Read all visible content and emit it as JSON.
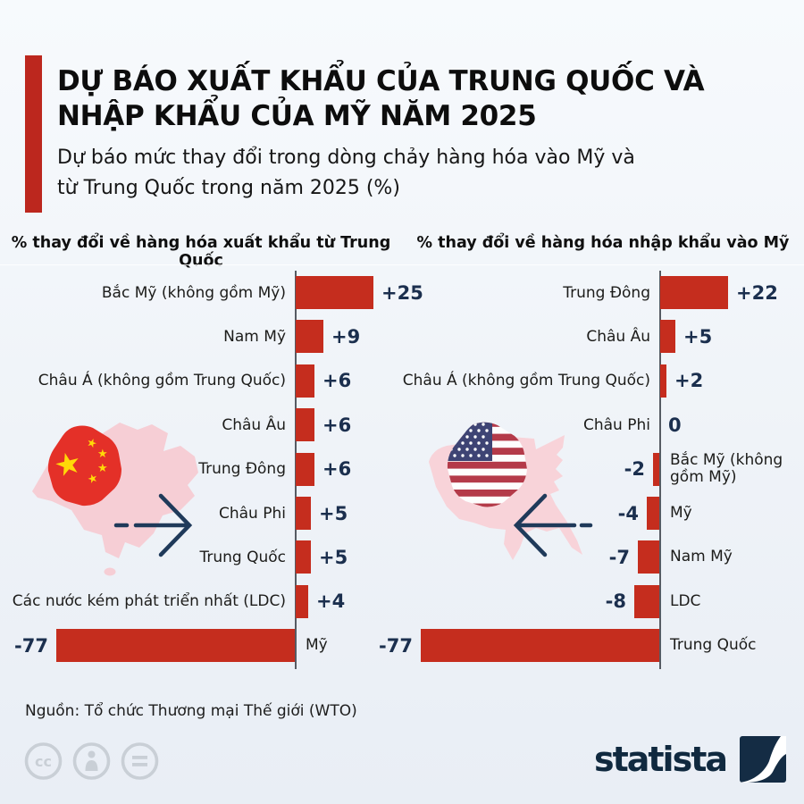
{
  "header": {
    "title_line1": "DỰ BÁO XUẤT KHẨU CỦA TRUNG QUỐC VÀ",
    "title_line2": "NHẬP KHẨU CỦA MỸ NĂM 2025",
    "subtitle_line1": "Dự báo mức thay đổi trong dòng chảy hàng hóa vào Mỹ và",
    "subtitle_line2": "từ Trung Quốc trong năm 2025 (%)",
    "accent_color": "#bc271e"
  },
  "chart_data": [
    {
      "type": "bar",
      "orientation": "horizontal",
      "title": "% thay đổi về hàng hóa xuất khẩu từ Trung Quốc",
      "unit": "%",
      "categories": [
        "Bắc Mỹ (không gồm Mỹ)",
        "Nam Mỹ",
        "Châu Á (không gồm Trung Quốc)",
        "Châu Âu",
        "Trung Đông",
        "Châu Phi",
        "Trung Quốc",
        "Các nước kém phát triển nhất (LDC)",
        "Mỹ"
      ],
      "values": [
        25,
        9,
        6,
        6,
        6,
        5,
        5,
        4,
        -77
      ],
      "value_labels": [
        "+25",
        "+9",
        "+6",
        "+6",
        "+6",
        "+5",
        "+5",
        "+4",
        "-77"
      ],
      "xlim": [
        -80,
        30
      ],
      "baseline": 0,
      "grid": false,
      "bar_color": "#c52d1e",
      "value_color": "#1b2f4e",
      "decoration": "china-map-with-flag-and-right-arrow"
    },
    {
      "type": "bar",
      "orientation": "horizontal",
      "title": "% thay đổi về hàng hóa nhập khẩu vào Mỹ",
      "unit": "%",
      "categories": [
        "Trung Đông",
        "Châu Âu",
        "Châu Á (không gồm Trung Quốc)",
        "Châu Phi",
        "Bắc Mỹ (không gồm Mỹ)",
        "Mỹ",
        "Nam Mỹ",
        "LDC",
        "Trung Quốc"
      ],
      "values": [
        22,
        5,
        2,
        0,
        -2,
        -4,
        -7,
        -8,
        -77
      ],
      "value_labels": [
        "+22",
        "+5",
        "+2",
        "0",
        "-2",
        "-4",
        "-7",
        "-8",
        "-77"
      ],
      "xlim": [
        -80,
        30
      ],
      "baseline": 0,
      "grid": false,
      "bar_color": "#c52d1e",
      "value_color": "#1b2f4e",
      "decoration": "us-map-with-flag-and-left-arrow"
    }
  ],
  "decorations": {
    "china_flag_colors": {
      "red": "#e43028",
      "yellow": "#ffd908"
    },
    "us_flag_colors": {
      "red": "#b43a49",
      "blue": "#3e4474",
      "white": "#fdfdfd"
    },
    "map_pink": "#f6ced5",
    "arrow_navy": "#1f3a5a"
  },
  "footer": {
    "source": "Nguồn: Tổ chức Thương mại Thế giới (WTO)",
    "license_icons": [
      "cc-icon",
      "attribution-person-icon",
      "equals-icon"
    ],
    "brand": "statista",
    "brand_navy": "#142c44"
  }
}
